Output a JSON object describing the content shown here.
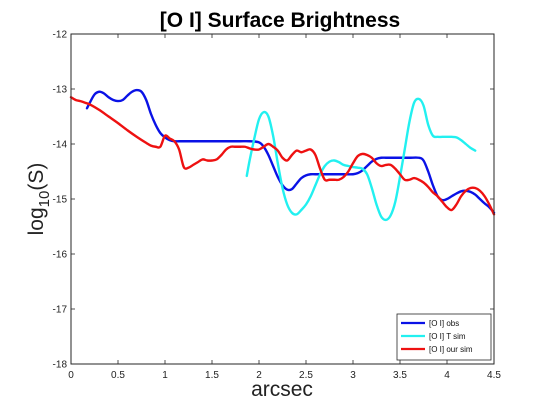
{
  "chart_data": {
    "type": "line",
    "title": "[O I] Surface Brightness",
    "xlabel": "arcsec",
    "ylabel": {
      "base": "log",
      "sub": "10",
      "arg": "(S)"
    },
    "xlim": [
      0,
      4.5
    ],
    "ylim": [
      -18,
      -12
    ],
    "xticks": [
      "0",
      "0.5",
      "1",
      "1.5",
      "2",
      "2.5",
      "3",
      "3.5",
      "4",
      "4.5"
    ],
    "yticks": [
      "-18",
      "-17",
      "-16",
      "-15",
      "-14",
      "-13",
      "-12"
    ],
    "grid": false,
    "legend_position": "bottom-right",
    "series": [
      {
        "name": "[O I] obs",
        "color": "#0a12e6",
        "x": [
          0.17,
          0.2,
          0.25,
          0.3,
          0.35,
          0.4,
          0.45,
          0.5,
          0.55,
          0.6,
          0.65,
          0.7,
          0.75,
          0.8,
          0.85,
          0.9,
          0.95,
          1.0,
          1.05,
          1.1,
          1.15,
          1.2,
          1.3,
          1.4,
          1.5,
          1.6,
          1.7,
          1.8,
          1.9,
          2.0,
          2.05,
          2.1,
          2.15,
          2.2,
          2.25,
          2.3,
          2.35,
          2.4,
          2.45,
          2.5,
          2.55,
          2.6,
          2.7,
          2.8,
          2.9,
          3.0,
          3.05,
          3.1,
          3.15,
          3.2,
          3.25,
          3.3,
          3.35,
          3.4,
          3.5,
          3.6,
          3.7,
          3.75,
          3.8,
          3.85,
          3.9,
          3.95,
          4.0,
          4.05,
          4.1,
          4.15,
          4.2,
          4.25,
          4.3,
          4.35,
          4.4,
          4.45,
          4.5
        ],
        "y": [
          -13.35,
          -13.25,
          -13.1,
          -13.05,
          -13.08,
          -13.15,
          -13.2,
          -13.22,
          -13.2,
          -13.12,
          -13.05,
          -13.02,
          -13.05,
          -13.2,
          -13.45,
          -13.65,
          -13.8,
          -13.88,
          -13.93,
          -13.95,
          -13.95,
          -13.95,
          -13.95,
          -13.95,
          -13.95,
          -13.95,
          -13.95,
          -13.95,
          -13.95,
          -13.97,
          -14.05,
          -14.2,
          -14.4,
          -14.6,
          -14.75,
          -14.83,
          -14.82,
          -14.72,
          -14.62,
          -14.57,
          -14.55,
          -14.55,
          -14.55,
          -14.55,
          -14.55,
          -14.55,
          -14.53,
          -14.48,
          -14.4,
          -14.32,
          -14.27,
          -14.25,
          -14.25,
          -14.25,
          -14.25,
          -14.25,
          -14.25,
          -14.3,
          -14.5,
          -14.75,
          -14.95,
          -15.02,
          -15.0,
          -14.95,
          -14.9,
          -14.86,
          -14.85,
          -14.87,
          -14.92,
          -15.0,
          -15.08,
          -15.15,
          -15.25
        ]
      },
      {
        "name": "[O I] T sim",
        "color": "#22f0f0",
        "x": [
          1.87,
          1.9,
          1.95,
          2.0,
          2.05,
          2.1,
          2.15,
          2.2,
          2.25,
          2.3,
          2.35,
          2.4,
          2.45,
          2.5,
          2.55,
          2.6,
          2.65,
          2.7,
          2.75,
          2.8,
          2.85,
          2.9,
          2.95,
          3.0,
          3.05,
          3.1,
          3.15,
          3.2,
          3.25,
          3.3,
          3.35,
          3.4,
          3.45,
          3.5,
          3.55,
          3.6,
          3.65,
          3.7,
          3.75,
          3.8,
          3.85,
          3.9,
          3.95,
          4.0,
          4.05,
          4.1,
          4.15,
          4.2,
          4.25,
          4.3
        ],
        "y": [
          -14.58,
          -14.3,
          -13.9,
          -13.55,
          -13.42,
          -13.5,
          -13.85,
          -14.35,
          -14.8,
          -15.1,
          -15.25,
          -15.28,
          -15.2,
          -15.1,
          -14.95,
          -14.75,
          -14.55,
          -14.4,
          -14.32,
          -14.3,
          -14.33,
          -14.38,
          -14.4,
          -14.42,
          -14.43,
          -14.45,
          -14.55,
          -14.8,
          -15.1,
          -15.32,
          -15.38,
          -15.3,
          -15.05,
          -14.6,
          -14.1,
          -13.6,
          -13.25,
          -13.18,
          -13.3,
          -13.65,
          -13.85,
          -13.87,
          -13.87,
          -13.87,
          -13.87,
          -13.88,
          -13.93,
          -14.0,
          -14.07,
          -14.12
        ]
      },
      {
        "name": "[O I] our sim",
        "color": "#ee1111",
        "x": [
          0.0,
          0.05,
          0.1,
          0.15,
          0.2,
          0.3,
          0.4,
          0.5,
          0.6,
          0.7,
          0.8,
          0.85,
          0.9,
          0.95,
          1.0,
          1.05,
          1.1,
          1.15,
          1.2,
          1.25,
          1.3,
          1.35,
          1.4,
          1.45,
          1.5,
          1.55,
          1.6,
          1.65,
          1.7,
          1.75,
          1.8,
          1.85,
          1.9,
          1.95,
          2.0,
          2.05,
          2.1,
          2.15,
          2.2,
          2.25,
          2.3,
          2.35,
          2.4,
          2.45,
          2.5,
          2.55,
          2.6,
          2.65,
          2.7,
          2.75,
          2.8,
          2.85,
          2.9,
          2.95,
          3.0,
          3.05,
          3.1,
          3.15,
          3.2,
          3.25,
          3.3,
          3.35,
          3.4,
          3.45,
          3.5,
          3.55,
          3.6,
          3.65,
          3.7,
          3.75,
          3.8,
          3.85,
          3.9,
          3.95,
          4.0,
          4.05,
          4.1,
          4.15,
          4.2,
          4.25,
          4.3,
          4.35,
          4.4,
          4.45,
          4.5
        ],
        "y": [
          -13.15,
          -13.2,
          -13.22,
          -13.25,
          -13.28,
          -13.38,
          -13.5,
          -13.62,
          -13.75,
          -13.87,
          -13.98,
          -14.03,
          -14.05,
          -14.05,
          -13.85,
          -13.9,
          -13.95,
          -14.1,
          -14.42,
          -14.43,
          -14.38,
          -14.33,
          -14.28,
          -14.3,
          -14.3,
          -14.28,
          -14.2,
          -14.1,
          -14.05,
          -14.05,
          -14.05,
          -14.05,
          -14.08,
          -14.1,
          -14.1,
          -14.05,
          -14.0,
          -14.05,
          -14.12,
          -14.25,
          -14.3,
          -14.2,
          -14.12,
          -14.15,
          -14.12,
          -14.1,
          -14.2,
          -14.45,
          -14.65,
          -14.65,
          -14.65,
          -14.65,
          -14.6,
          -14.5,
          -14.35,
          -14.22,
          -14.18,
          -14.2,
          -14.25,
          -14.35,
          -14.4,
          -14.38,
          -14.38,
          -14.45,
          -14.55,
          -14.65,
          -14.65,
          -14.62,
          -14.65,
          -14.7,
          -14.78,
          -14.88,
          -14.95,
          -15.05,
          -15.15,
          -15.2,
          -15.1,
          -14.95,
          -14.85,
          -14.8,
          -14.8,
          -14.85,
          -14.95,
          -15.1,
          -15.28
        ]
      }
    ]
  }
}
